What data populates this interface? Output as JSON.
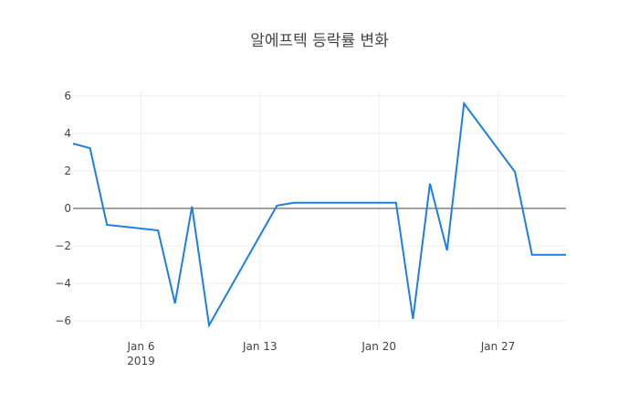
{
  "chart_data": {
    "type": "line",
    "title": "알에프텍 등락률 변화",
    "xlabel": "",
    "ylabel": "",
    "x": [
      "2019-01-02",
      "2019-01-03",
      "2019-01-04",
      "2019-01-07",
      "2019-01-08",
      "2019-01-09",
      "2019-01-10",
      "2019-01-14",
      "2019-01-15",
      "2019-01-21",
      "2019-01-22",
      "2019-01-23",
      "2019-01-24",
      "2019-01-25",
      "2019-01-28",
      "2019-01-29",
      "2019-01-31"
    ],
    "series": [
      {
        "name": "등락률",
        "color": "#1f7fe0",
        "values": [
          3.46,
          3.22,
          -0.88,
          -1.17,
          -5.07,
          0.1,
          -6.24,
          0.15,
          0.3,
          0.3,
          -5.9,
          1.32,
          -2.24,
          5.6,
          1.95,
          -2.48,
          -2.48
        ]
      }
    ],
    "xlim": [
      "2019-01-02",
      "2019-01-31"
    ],
    "ylim": [
      -7,
      6.3
    ],
    "x_ticks": [
      {
        "date": "2019-01-06",
        "label": "Jan 6",
        "sublabel": "2019"
      },
      {
        "date": "2019-01-13",
        "label": "Jan 13",
        "sublabel": ""
      },
      {
        "date": "2019-01-20",
        "label": "Jan 20",
        "sublabel": ""
      },
      {
        "date": "2019-01-27",
        "label": "Jan 27",
        "sublabel": ""
      }
    ],
    "y_ticks": [
      6,
      4,
      2,
      0,
      -2,
      -4,
      -6
    ],
    "y_tick_labels": [
      "6",
      "4",
      "2",
      "0",
      "−2",
      "−4",
      "−6"
    ],
    "grid": true,
    "zero_line": true,
    "legend": "none"
  },
  "colors": {
    "line": "#1f7fe0",
    "grid": "#eeeeee",
    "zero_line": "#444444",
    "text": "#444444",
    "background": "#ffffff"
  }
}
